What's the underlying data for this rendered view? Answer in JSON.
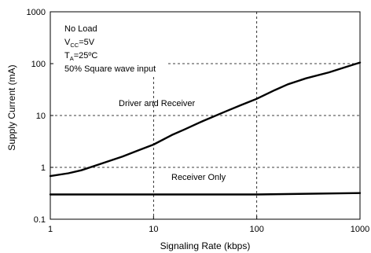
{
  "chart_data": {
    "type": "line",
    "xlabel": "Signaling Rate (kbps)",
    "ylabel": "Supply Current (mA)",
    "x_scale": "log",
    "y_scale": "log",
    "xlim": [
      1,
      1000
    ],
    "ylim": [
      0.1,
      1000
    ],
    "x_ticks": [
      "1",
      "10",
      "100",
      "1000"
    ],
    "y_ticks": [
      "0.1",
      "1",
      "10",
      "100",
      "1000"
    ],
    "grid": true,
    "conditions": {
      "line1": "No Load",
      "line2_pre": "V",
      "line2_sub": "CC",
      "line2_post": "=5V",
      "line3_pre": "T",
      "line3_sub": "A",
      "line3_post": "=25ºC",
      "line4": "50% Square wave input"
    },
    "series": [
      {
        "name": "Driver and Receiver",
        "x": [
          1,
          1.5,
          2,
          3,
          5,
          7,
          10,
          15,
          20,
          30,
          50,
          70,
          100,
          150,
          200,
          300,
          500,
          700,
          1000
        ],
        "y": [
          0.68,
          0.77,
          0.88,
          1.15,
          1.62,
          2.1,
          2.75,
          4.2,
          5.4,
          7.8,
          12.0,
          15.8,
          21.0,
          31.0,
          40.0,
          52.0,
          68.0,
          84.0,
          105.0
        ]
      },
      {
        "name": "Receiver Only",
        "x": [
          1,
          10,
          100,
          1000
        ],
        "y": [
          0.3,
          0.3,
          0.3,
          0.32
        ]
      }
    ]
  }
}
